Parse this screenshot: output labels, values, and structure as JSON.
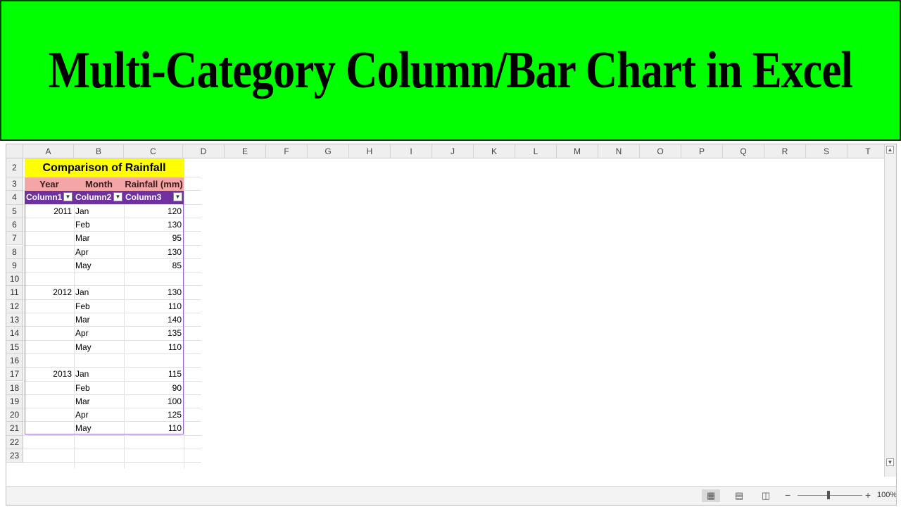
{
  "banner": {
    "title": "Multi-Category Column/Bar Chart in Excel"
  },
  "sheet": {
    "columns": [
      "A",
      "B",
      "C",
      "D",
      "E",
      "F",
      "G",
      "H",
      "I",
      "J",
      "K",
      "L",
      "M",
      "N",
      "O",
      "P",
      "Q",
      "R",
      "S",
      "T"
    ],
    "rows": [
      "2",
      "3",
      "4",
      "5",
      "6",
      "7",
      "8",
      "9",
      "10",
      "11",
      "12",
      "13",
      "14",
      "15",
      "16",
      "17",
      "18",
      "19",
      "20",
      "21",
      "22",
      "23"
    ],
    "table_title": "Comparison of Rainfall",
    "headers": [
      "Year",
      "Month",
      "Rainfall (mm)"
    ],
    "filter_headers": [
      "Column1",
      "Column2",
      "Column3"
    ],
    "data": [
      [
        "2011",
        "Jan",
        "120"
      ],
      [
        "",
        "Feb",
        "130"
      ],
      [
        "",
        "Mar",
        "95"
      ],
      [
        "",
        "Apr",
        "130"
      ],
      [
        "",
        "May",
        "85"
      ],
      [
        "",
        "",
        ""
      ],
      [
        "2012",
        "Jan",
        "130"
      ],
      [
        "",
        "Feb",
        "110"
      ],
      [
        "",
        "Mar",
        "140"
      ],
      [
        "",
        "Apr",
        "135"
      ],
      [
        "",
        "May",
        "110"
      ],
      [
        "",
        "",
        ""
      ],
      [
        "2013",
        "Jan",
        "115"
      ],
      [
        "",
        "Feb",
        "90"
      ],
      [
        "",
        "Mar",
        "100"
      ],
      [
        "",
        "Apr",
        "125"
      ],
      [
        "",
        "May",
        "110"
      ]
    ]
  },
  "chart_data": {
    "type": "bar",
    "title": "Comparison of Rainfall",
    "xlabel": "",
    "ylabel": "Rainfall (mm)",
    "ylim": [
      0,
      160
    ],
    "yticks": [
      0,
      20,
      40,
      60,
      80,
      100,
      120,
      140,
      160
    ],
    "grid": false,
    "groups": [
      {
        "name": "2011",
        "color": "#00a651",
        "categories": [
          "Jan",
          "Feb",
          "Mar",
          "Apr",
          "May"
        ],
        "values": [
          120,
          130,
          95,
          130,
          85
        ]
      },
      {
        "name": "2012",
        "color": "#ff0000",
        "categories": [
          "Jan",
          "Feb",
          "Mar",
          "Apr",
          "May"
        ],
        "values": [
          130,
          110,
          140,
          135,
          110
        ]
      },
      {
        "name": "2013",
        "color": "#1a1ab8",
        "categories": [
          "Jan",
          "Feb",
          "Mar",
          "Apr",
          "May"
        ],
        "values": [
          115,
          90,
          100,
          125,
          110
        ]
      }
    ]
  },
  "statusbar": {
    "zoom": "100%",
    "zoom_minus": "−",
    "zoom_plus": "+"
  },
  "icons": {
    "normal_view": "grid-view-icon",
    "page_layout": "page-layout-icon",
    "page_break": "page-break-icon"
  }
}
